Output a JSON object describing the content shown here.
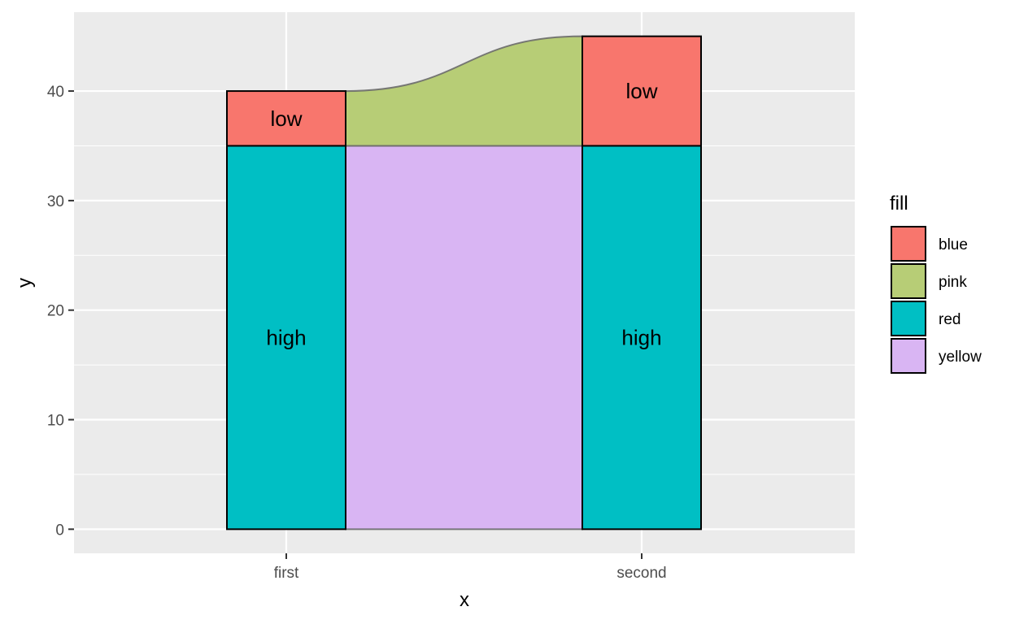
{
  "chart_data": {
    "type": "bar",
    "subtype": "alluvial-stacked",
    "xlabel": "x",
    "ylabel": "y",
    "categories": [
      "first",
      "second"
    ],
    "ylim": [
      -2.2,
      47.2
    ],
    "yticks": [
      0,
      10,
      20,
      30,
      40
    ],
    "grid": true,
    "legend": {
      "title": "fill",
      "position": "right",
      "entries": [
        {
          "label": "blue",
          "color": "#F8766D"
        },
        {
          "label": "pink",
          "color": "#B7CD76"
        },
        {
          "label": "red",
          "color": "#00BFC4"
        },
        {
          "label": "yellow",
          "color": "#D9B5F3"
        }
      ]
    },
    "strata": [
      {
        "x": "first",
        "label": "high",
        "ymin": 0,
        "ymax": 35,
        "color": "#00BFC4"
      },
      {
        "x": "first",
        "label": "low",
        "ymin": 35,
        "ymax": 40,
        "color": "#F8766D"
      },
      {
        "x": "second",
        "label": "high",
        "ymin": 0,
        "ymax": 35,
        "color": "#00BFC4"
      },
      {
        "x": "second",
        "label": "low",
        "ymin": 35,
        "ymax": 45,
        "color": "#F8766D"
      }
    ],
    "flows": [
      {
        "fill": "yellow",
        "color": "#D9B5F3",
        "from": [
          0,
          35
        ],
        "to": [
          0,
          35
        ]
      },
      {
        "fill": "pink",
        "color": "#B7CD76",
        "from": [
          35,
          40
        ],
        "to": [
          35,
          45
        ]
      }
    ]
  }
}
